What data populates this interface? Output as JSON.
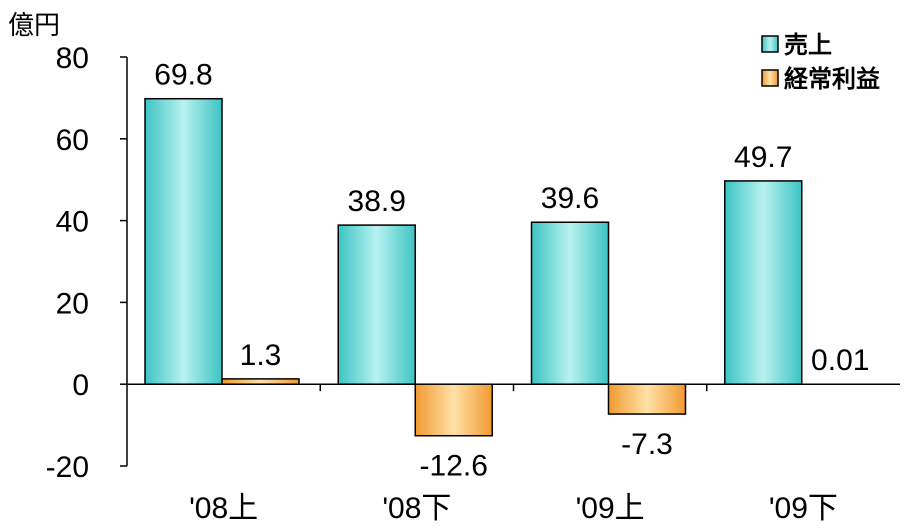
{
  "chart_data": {
    "type": "bar",
    "unit": "億円",
    "categories": [
      "'08上",
      "'08下",
      "'09上",
      "'09下"
    ],
    "series": [
      {
        "name": "売上",
        "values": [
          69.8,
          38.9,
          39.6,
          49.7
        ],
        "labels": [
          "69.8",
          "38.9",
          "39.6",
          "49.7"
        ]
      },
      {
        "name": "経常利益",
        "values": [
          1.3,
          -12.6,
          -7.3,
          0.01
        ],
        "labels": [
          "1.3",
          "-12.6",
          "-7.3",
          "0.01"
        ]
      }
    ],
    "ylim": [
      -20,
      80
    ],
    "yticks": [
      -20,
      0,
      20,
      40,
      60,
      80
    ],
    "ytick_labels": [
      "-20",
      "0",
      "20",
      "40",
      "60",
      "80"
    ],
    "legend_position": "top-right",
    "grid": false,
    "colors": {
      "売上": "#4fd0d0",
      "経常利益": "#f5a444"
    }
  }
}
